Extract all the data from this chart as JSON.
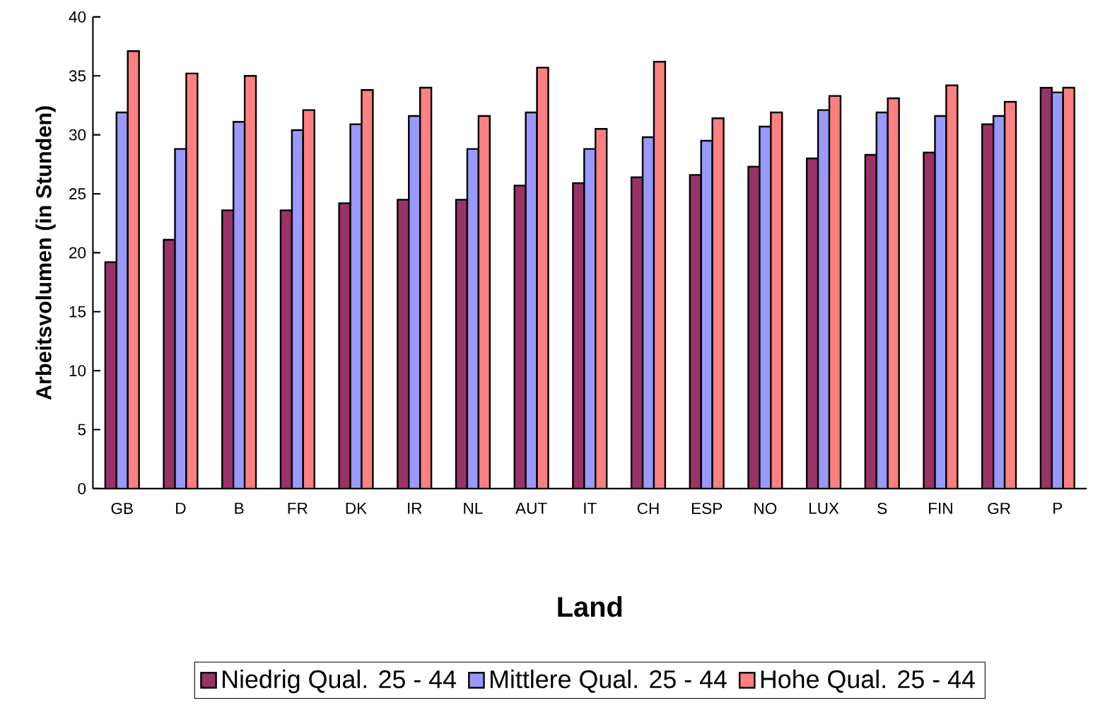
{
  "chart_data": {
    "type": "bar",
    "xlabel": "Land",
    "ylabel": "Arbeitsvolumen (in Stunden)",
    "categories": [
      "GB",
      "D",
      "B",
      "FR",
      "DK",
      "IR",
      "NL",
      "AUT",
      "IT",
      "CH",
      "ESP",
      "NO",
      "LUX",
      "S",
      "FIN",
      "GR",
      "P"
    ],
    "series": [
      {
        "name": "Niedrig Qual. 25 - 44",
        "color": "#993366",
        "values": [
          19.2,
          21.1,
          23.6,
          23.6,
          24.2,
          24.5,
          24.5,
          25.7,
          25.9,
          26.4,
          26.6,
          27.3,
          28.0,
          28.3,
          28.5,
          30.9,
          34.0
        ]
      },
      {
        "name": "Mittlere Qual. 25 - 44",
        "color": "#9999ff",
        "values": [
          31.9,
          28.8,
          31.1,
          30.4,
          30.9,
          31.6,
          28.8,
          31.9,
          28.8,
          29.8,
          29.5,
          30.7,
          32.1,
          31.9,
          31.6,
          31.6,
          33.6
        ]
      },
      {
        "name": "Hohe Qual. 25 - 44",
        "color": "#ff8080",
        "values": [
          37.1,
          35.2,
          35.0,
          32.1,
          33.8,
          34.0,
          31.6,
          35.7,
          30.5,
          36.2,
          31.4,
          31.9,
          33.3,
          33.1,
          34.2,
          32.8,
          34.0
        ]
      }
    ],
    "ylim": [
      0,
      40
    ],
    "yticks": [
      0,
      5,
      10,
      15,
      20,
      25,
      30,
      35,
      40
    ],
    "legend": "bottom"
  }
}
